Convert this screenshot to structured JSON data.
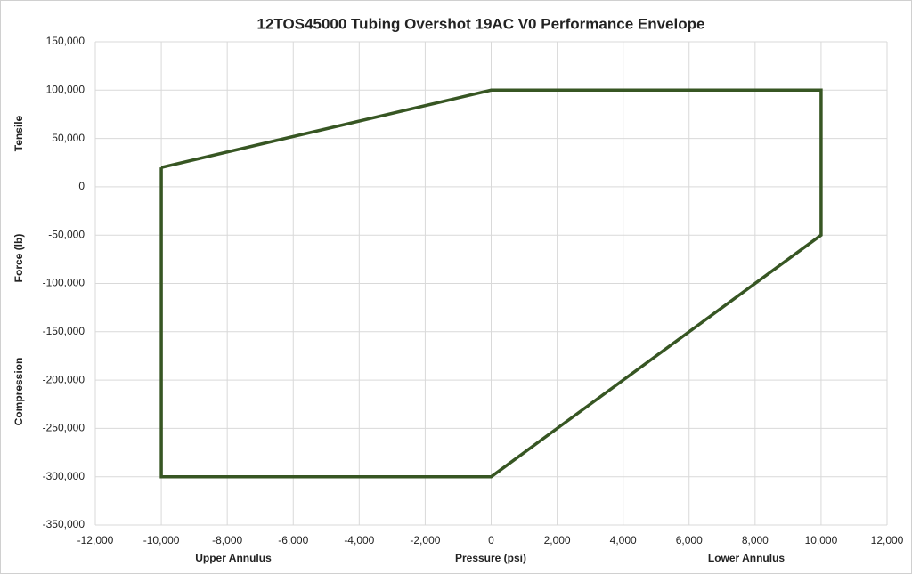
{
  "chart_data": {
    "type": "line",
    "title": "12TOS45000 Tubing Overshot 19AC V0 Performance Envelope",
    "x_label": "Pressure (psi)",
    "y_label": "Force (lb)",
    "x_annotations": [
      "Upper Annulus",
      "Lower Annulus"
    ],
    "y_annotations": [
      "Tensile",
      "Compression"
    ],
    "x": [
      -10000,
      0,
      10000,
      10000,
      0,
      -10000,
      -10000
    ],
    "values": [
      20000,
      100000,
      100000,
      -50000,
      -300000,
      -300000,
      20000
    ],
    "color": "#375623",
    "xlim": [
      -12000,
      12000
    ],
    "xticks": [
      {
        "value": -12000,
        "label": "-12,000"
      },
      {
        "value": -10000,
        "label": "-10,000"
      },
      {
        "value": -8000,
        "label": "-8,000"
      },
      {
        "value": -6000,
        "label": "-6,000"
      },
      {
        "value": -4000,
        "label": "-4,000"
      },
      {
        "value": -2000,
        "label": "-2,000"
      },
      0,
      {
        "value": 2000,
        "label": "2,000"
      },
      {
        "value": 4000,
        "label": "4,000"
      },
      {
        "value": 6000,
        "label": "6,000"
      },
      {
        "value": 8000,
        "label": "8,000"
      },
      {
        "value": 10000,
        "label": "10,000"
      },
      {
        "value": 12000,
        "label": "12,000"
      }
    ],
    "ylim": [
      -350000,
      150000
    ],
    "yticks": [
      {
        "value": -350000,
        "label": "-350,000"
      },
      {
        "value": -300000,
        "label": "-300,000"
      },
      {
        "value": -250000,
        "label": "-250,000"
      },
      {
        "value": -200000,
        "label": "-200,000"
      },
      {
        "value": -150000,
        "label": "-150,000"
      },
      {
        "value": -100000,
        "label": "-100,000"
      },
      {
        "value": -50000,
        "label": "-50,000"
      },
      0,
      {
        "value": 50000,
        "label": "50,000"
      },
      {
        "value": 100000,
        "label": "100,000"
      },
      {
        "value": 150000,
        "label": "150,000"
      }
    ],
    "grid": true
  }
}
